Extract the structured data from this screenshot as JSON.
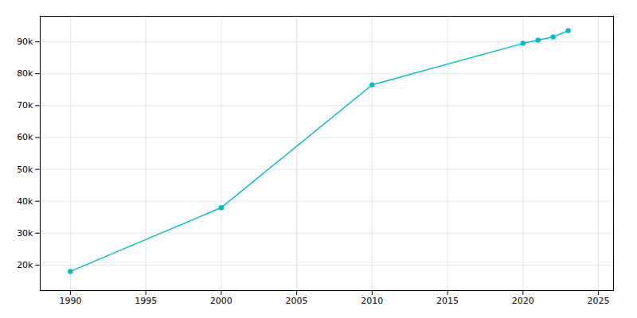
{
  "chart_data": {
    "type": "line",
    "x": [
      1990,
      2000,
      2010,
      2020,
      2021,
      2022,
      2023
    ],
    "values": [
      18000,
      38000,
      76500,
      89500,
      90500,
      91500,
      93500
    ],
    "color": "#00bfbf",
    "marker": "circle",
    "xlim": [
      1988,
      2026
    ],
    "ylim": [
      12000,
      98000
    ],
    "xticks": [
      1990,
      1995,
      2000,
      2005,
      2010,
      2015,
      2020,
      2025
    ],
    "yticks": [
      {
        "value": 20000,
        "label": "20k"
      },
      {
        "value": 30000,
        "label": "30k"
      },
      {
        "value": 40000,
        "label": "40k"
      },
      {
        "value": 50000,
        "label": "50k"
      },
      {
        "value": 60000,
        "label": "60k"
      },
      {
        "value": 70000,
        "label": "70k"
      },
      {
        "value": 80000,
        "label": "80k"
      },
      {
        "value": 90000,
        "label": "90k"
      }
    ],
    "grid": true
  }
}
